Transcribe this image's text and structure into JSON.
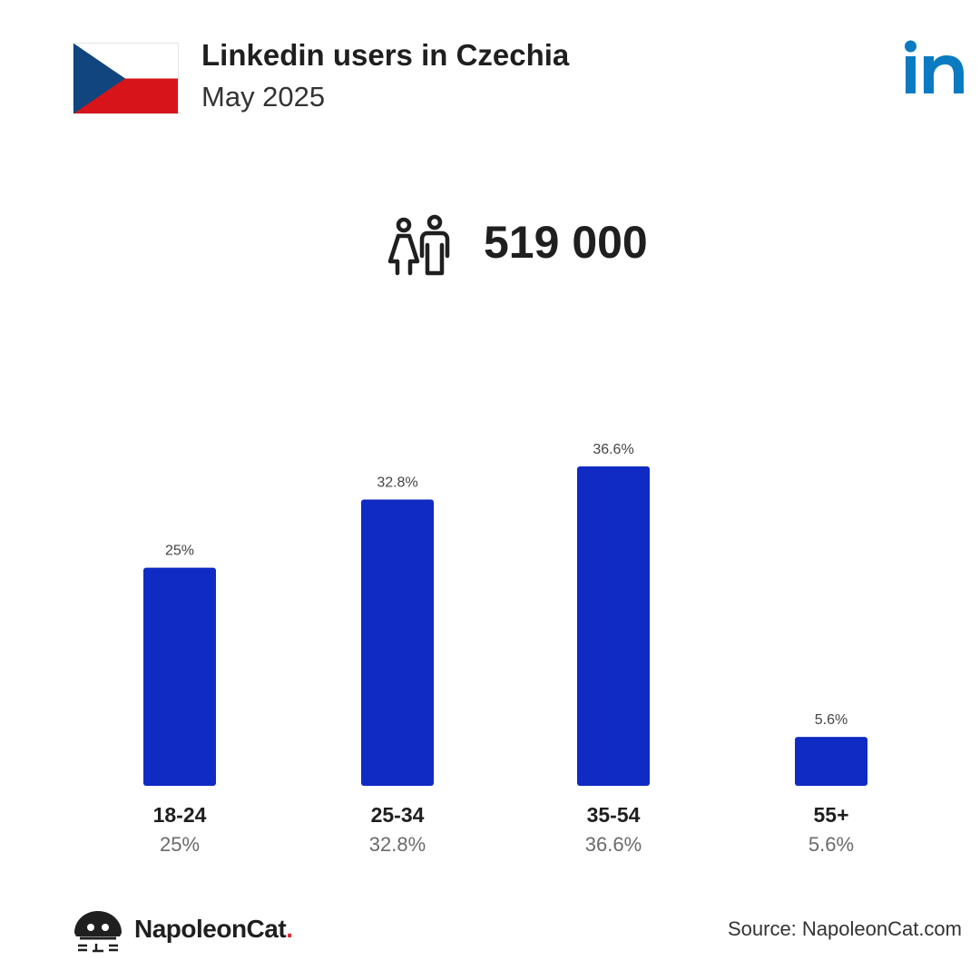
{
  "header": {
    "title": "Linkedin users in Czechia",
    "subtitle": "May 2025",
    "flag_icon": "czech-flag-icon",
    "brand_icon": "linkedin-logo-icon"
  },
  "summary": {
    "users_icon": "users-icon",
    "total": "519 000"
  },
  "chart_data": {
    "type": "bar",
    "categories": [
      "18-24",
      "25-34",
      "35-54",
      "55+"
    ],
    "values": [
      25,
      32.8,
      36.6,
      5.6
    ],
    "data_labels": [
      "25%",
      "32.8%",
      "36.6%",
      "5.6%"
    ],
    "sub_labels": [
      "25%",
      "32.8%",
      "36.6%",
      "5.6%"
    ],
    "unit": "%",
    "ylim": [
      0,
      36.6
    ],
    "grid": false,
    "legend": "none",
    "bar_color": "#0f2bc4"
  },
  "footer": {
    "brand_name": "NapoleonCat",
    "brand_dot": ".",
    "source": "Source: NapoleonCat.com"
  },
  "colors": {
    "flag_white": "#ffffff",
    "flag_red": "#d7141a",
    "flag_blue": "#11457e",
    "linkedin_blue": "#0a7bc1",
    "brand_dot": "#e0262b"
  }
}
